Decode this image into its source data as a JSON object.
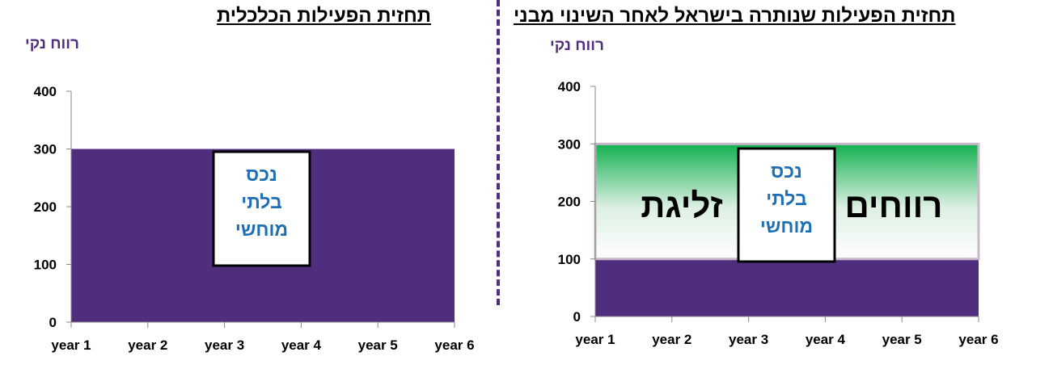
{
  "chart_data": [
    {
      "type": "area",
      "title": "תחזית הפעילות הכלכלית",
      "ylabel": "רווח נקי",
      "categories": [
        "year 1",
        "year 2",
        "year 3",
        "year 4",
        "year 5",
        "year 6"
      ],
      "ylim": [
        0,
        400
      ],
      "yticks": [
        0,
        100,
        200,
        300,
        400
      ],
      "series": [
        {
          "values": [
            300,
            300,
            300,
            300,
            300,
            300
          ],
          "color": "#4f2e7e"
        }
      ],
      "annotations": [
        {
          "text_lines": [
            "נכס",
            "בלתי",
            "מוחשי"
          ],
          "color": "#1f6fb5",
          "y_range": [
            95,
            300
          ]
        }
      ]
    },
    {
      "type": "area",
      "title": "תחזית הפעילות שנותרה בישראל לאחר השינוי מבני",
      "ylabel": "רווח נקי",
      "categories": [
        "year 1",
        "year 2",
        "year 3",
        "year 4",
        "year 5",
        "year 6"
      ],
      "ylim": [
        0,
        400
      ],
      "yticks": [
        0,
        100,
        200,
        300,
        400
      ],
      "series": [
        {
          "values": [
            100,
            100,
            100,
            100,
            100,
            100
          ],
          "color": "#4f2e7e"
        },
        {
          "values": [
            200,
            200,
            200,
            200,
            200,
            200
          ],
          "color_top": "#12b04f",
          "color_bottom": "#ffffff"
        }
      ],
      "annotations": [
        {
          "text_lines": [
            "נכס",
            "בלתי",
            "מוחשי"
          ],
          "color": "#1f6fb5",
          "y_range": [
            95,
            300
          ]
        },
        {
          "text": "רווחים",
          "color": "#000000"
        },
        {
          "text": "זליגת",
          "color": "#000000"
        }
      ]
    }
  ]
}
